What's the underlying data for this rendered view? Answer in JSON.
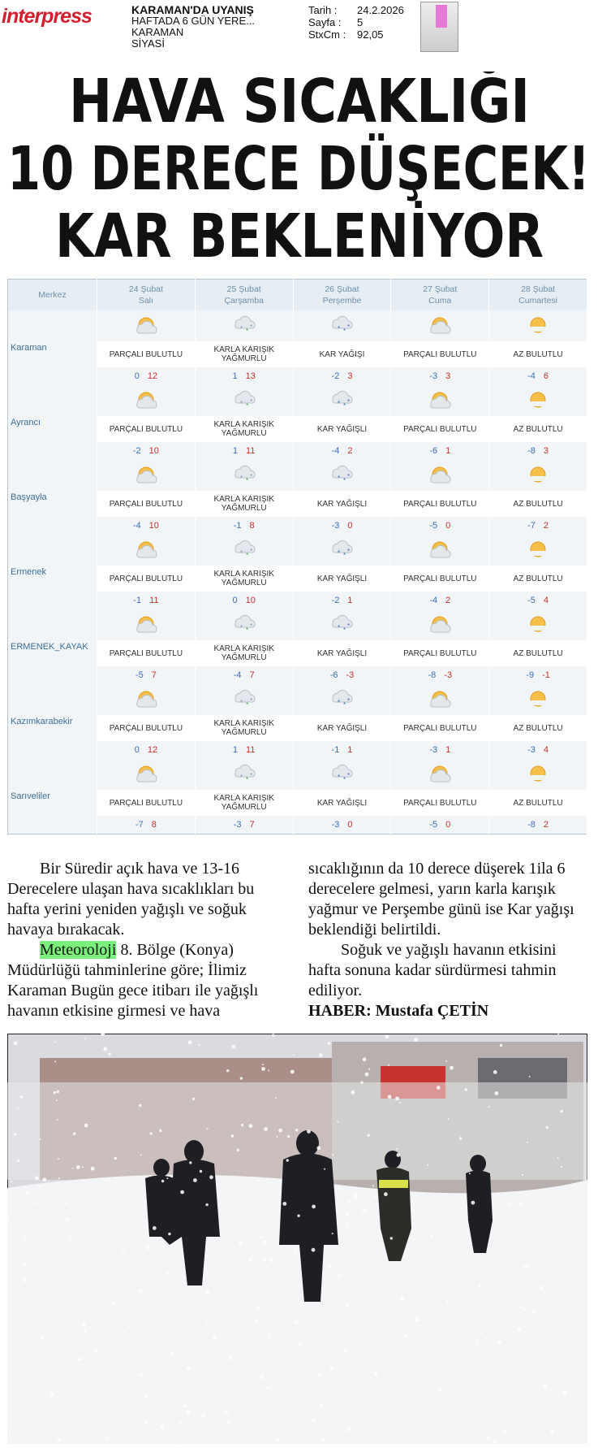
{
  "header": {
    "logo": "interpress",
    "publication": "KARAMAN'DA UYANIŞ",
    "frequency": "HAFTADA 6 GÜN YERE...",
    "city": "KARAMAN",
    "section": "SİYASİ",
    "meta": [
      {
        "label": "Tarih :",
        "value": "24.2.2026"
      },
      {
        "label": "Sayfa :",
        "value": "5"
      },
      {
        "label": "StxCm :",
        "value": "92,05"
      }
    ]
  },
  "headline": [
    "HAVA SICAKLIĞI",
    "10 DERECE DÜŞECEK!",
    "KAR BEKLENİYOR"
  ],
  "table": {
    "header": "Merkez",
    "days": [
      {
        "date": "24 Şubat",
        "day": "Salı"
      },
      {
        "date": "25 Şubat",
        "day": "Çarşamba"
      },
      {
        "date": "26 Şubat",
        "day": "Perşembe"
      },
      {
        "date": "27 Şubat",
        "day": "Cuma"
      },
      {
        "date": "28 Şubat",
        "day": "Cumartesi"
      }
    ],
    "rows": [
      {
        "city": "Karaman",
        "cells": [
          {
            "condition": "PARÇALI BULUTLU",
            "low": 0,
            "high": 12
          },
          {
            "condition": "KARLA KARIŞIK YAĞMURLU",
            "low": 1,
            "high": 13
          },
          {
            "condition": "KAR YAĞIŞI",
            "low": -2,
            "high": 3
          },
          {
            "condition": "PARÇALI BULUTLU",
            "low": -3,
            "high": 3
          },
          {
            "condition": "AZ BULUTLU",
            "low": -4,
            "high": 6
          }
        ]
      },
      {
        "city": "Ayrancı",
        "cells": [
          {
            "condition": "PARÇALI BULUTLU",
            "low": -2,
            "high": 10
          },
          {
            "condition": "KARLA KARIŞIK YAĞMURLU",
            "low": 1,
            "high": 11
          },
          {
            "condition": "KAR YAĞIŞLI",
            "low": -4,
            "high": 2
          },
          {
            "condition": "PARÇALI BULUTLU",
            "low": -6,
            "high": 1
          },
          {
            "condition": "AZ BULUTLU",
            "low": -8,
            "high": 3
          }
        ]
      },
      {
        "city": "Başyayla",
        "cells": [
          {
            "condition": "PARÇALI BULUTLU",
            "low": -4,
            "high": 10
          },
          {
            "condition": "KARLA KARIŞIK YAĞMURLU",
            "low": -1,
            "high": 8
          },
          {
            "condition": "KAR YAĞIŞLI",
            "low": -3,
            "high": 0
          },
          {
            "condition": "PARÇALI BULUTLU",
            "low": -5,
            "high": 0
          },
          {
            "condition": "AZ BULUTLU",
            "low": -7,
            "high": 2
          }
        ]
      },
      {
        "city": "Ermenek",
        "cells": [
          {
            "condition": "PARÇALI BULUTLU",
            "low": -1,
            "high": 11
          },
          {
            "condition": "KARLA KARIŞIK YAĞMURLU",
            "low": 0,
            "high": 10
          },
          {
            "condition": "KAR YAĞIŞLI",
            "low": -2,
            "high": 1
          },
          {
            "condition": "PARÇALI BULUTLU",
            "low": -4,
            "high": 2
          },
          {
            "condition": "AZ BULUTLU",
            "low": -5,
            "high": 4
          }
        ]
      },
      {
        "city": "ERMENEK_KAYAK",
        "cells": [
          {
            "condition": "PARÇALI BULUTLU",
            "low": -5,
            "high": 7
          },
          {
            "condition": "KARLA KARIŞIK YAĞMURLU",
            "low": -4,
            "high": 7
          },
          {
            "condition": "KAR YAĞIŞLI",
            "low": -6,
            "high": -3
          },
          {
            "condition": "PARÇALI BULUTLU",
            "low": -8,
            "high": -3
          },
          {
            "condition": "AZ BULUTLU",
            "low": -9,
            "high": -1
          }
        ]
      },
      {
        "city": "Kazımkarabekir",
        "cells": [
          {
            "condition": "PARÇALI BULUTLU",
            "low": 0,
            "high": 12
          },
          {
            "condition": "KARLA KARIŞIK YAĞMURLU",
            "low": 1,
            "high": 11
          },
          {
            "condition": "KAR YAĞIŞLI",
            "low": -1,
            "high": 1
          },
          {
            "condition": "PARÇALI BULUTLU",
            "low": -3,
            "high": 1
          },
          {
            "condition": "AZ BULUTLU",
            "low": -3,
            "high": 4
          }
        ]
      },
      {
        "city": "Sarıveliler",
        "cells": [
          {
            "condition": "PARÇALI BULUTLU",
            "low": -7,
            "high": 8
          },
          {
            "condition": "KARLA KARIŞIK YAĞMURLU",
            "low": -3,
            "high": 7
          },
          {
            "condition": "KAR YAĞIŞLI",
            "low": -3,
            "high": 0
          },
          {
            "condition": "PARÇALI BULUTLU",
            "low": -5,
            "high": 0
          },
          {
            "condition": "AZ BULUTLU",
            "low": -8,
            "high": 2
          }
        ]
      }
    ]
  },
  "article": {
    "paragraphs": [
      {
        "text": "Bir Süredir açık hava ve 13-16 Derecelere ulaşan hava sıcaklıkları bu hafta yerini yeniden yağışlı ve soğuk havaya bırakacak."
      },
      {
        "highlight": "Meteoroloji",
        "text": " 8. Bölge (Konya) Müdürlüğü tahminlerine göre; İlimiz Karaman Bugün gece itibarı ile yağışlı havanın etkisine girmesi ve hava sıcaklığının da 10 derece düşerek 1ila 6 derecelere gelmesi, yarın karla karışık yağmur ve Perşembe günü ise Kar yağışı beklendiği belirtildi."
      },
      {
        "text": "Soğuk ve yağışlı havanın etkisini hafta sonuna kadar sürdürmesi tahmin ediliyor."
      }
    ],
    "byline": "HABER: Mustafa ÇETİN"
  }
}
